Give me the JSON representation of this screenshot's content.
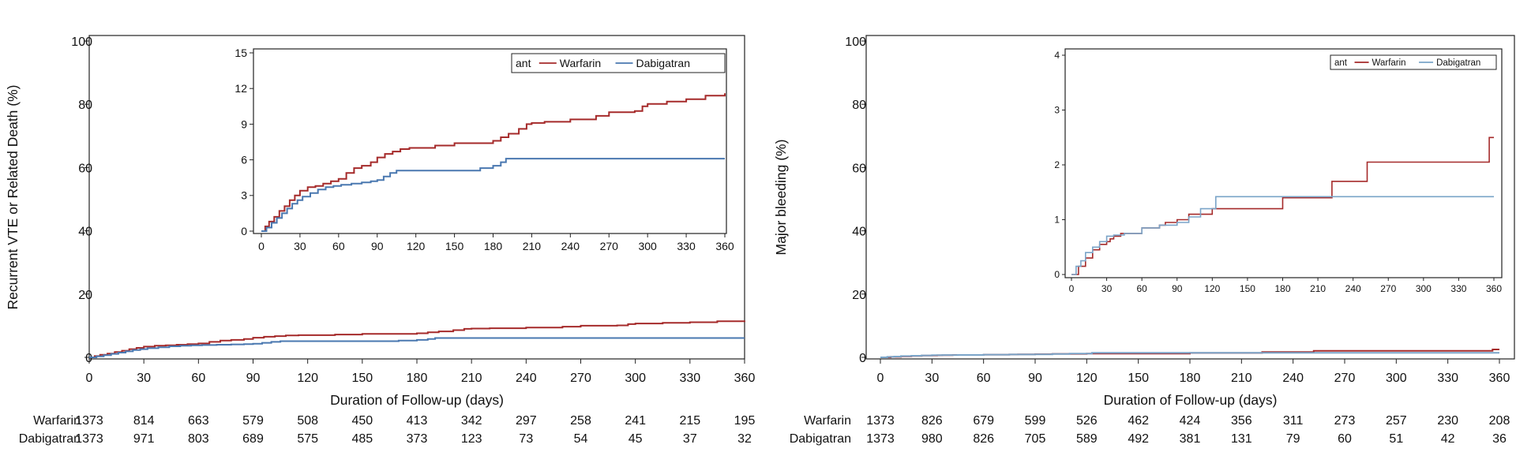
{
  "chart_data": [
    {
      "type": "line",
      "panel": "left",
      "ylabel": "Recurrent VTE or Related Death (%)",
      "xlabel": "Duration of Follow-up (days)",
      "xlim": [
        0,
        360
      ],
      "ylim": [
        0,
        100
      ],
      "xticks": [
        "0",
        "30",
        "60",
        "90",
        "120",
        "150",
        "180",
        "210",
        "240",
        "270",
        "300",
        "330",
        "360"
      ],
      "yticks": [
        "0",
        "20",
        "40",
        "60",
        "80",
        "100"
      ],
      "series": [
        {
          "name": "Warfarin",
          "color": "#a52a2a",
          "x": [
            0,
            3,
            6,
            10,
            14,
            18,
            22,
            26,
            30,
            36,
            42,
            48,
            54,
            60,
            66,
            72,
            78,
            85,
            90,
            96,
            102,
            108,
            115,
            120,
            135,
            150,
            165,
            180,
            186,
            192,
            200,
            206,
            210,
            220,
            240,
            260,
            270,
            290,
            296,
            300,
            315,
            330,
            345,
            360
          ],
          "y": [
            0,
            0.4,
            0.8,
            1.2,
            1.7,
            2.1,
            2.6,
            3.0,
            3.4,
            3.7,
            3.8,
            4.0,
            4.2,
            4.4,
            4.9,
            5.3,
            5.5,
            5.8,
            6.2,
            6.5,
            6.7,
            6.9,
            7.0,
            7.0,
            7.2,
            7.4,
            7.4,
            7.6,
            7.9,
            8.2,
            8.6,
            9.0,
            9.1,
            9.2,
            9.4,
            9.7,
            10.0,
            10.1,
            10.5,
            10.7,
            10.9,
            11.1,
            11.4,
            11.6
          ]
        },
        {
          "name": "Dabigatran",
          "color": "#4a78b0",
          "x": [
            0,
            4,
            8,
            12,
            16,
            20,
            24,
            28,
            32,
            38,
            44,
            50,
            56,
            62,
            70,
            78,
            85,
            90,
            95,
            100,
            105,
            120,
            150,
            170,
            180,
            186,
            190,
            200,
            240,
            300,
            360
          ],
          "y": [
            0,
            0.3,
            0.7,
            1.1,
            1.5,
            1.9,
            2.3,
            2.6,
            2.9,
            3.2,
            3.5,
            3.7,
            3.8,
            3.9,
            4.0,
            4.1,
            4.2,
            4.3,
            4.6,
            4.9,
            5.1,
            5.1,
            5.1,
            5.3,
            5.5,
            5.8,
            6.1,
            6.1,
            6.1,
            6.1,
            6.1
          ]
        }
      ],
      "inset": {
        "xlim": [
          0,
          360
        ],
        "ylim": [
          0,
          15
        ],
        "xticks": [
          "0",
          "30",
          "60",
          "90",
          "120",
          "150",
          "180",
          "210",
          "240",
          "270",
          "300",
          "330",
          "360"
        ],
        "yticks": [
          "0",
          "3",
          "6",
          "9",
          "12",
          "15"
        ],
        "legend": {
          "title": "ant",
          "entries": [
            "Warfarin",
            "Dabigatran"
          ],
          "position": "top-right"
        }
      },
      "risk_table": {
        "rows": [
          {
            "label": "Warfarin",
            "values": [
              "1373",
              "814",
              "663",
              "579",
              "508",
              "450",
              "413",
              "342",
              "297",
              "258",
              "241",
              "215",
              "195"
            ]
          },
          {
            "label": "Dabigatran",
            "values": [
              "1373",
              "971",
              "803",
              "689",
              "575",
              "485",
              "373",
              "123",
              "73",
              "54",
              "45",
              "37",
              "32"
            ]
          }
        ]
      }
    },
    {
      "type": "line",
      "panel": "right",
      "ylabel": "Major bleeding (%)",
      "xlabel": "Duration of Follow-up (days)",
      "xlim": [
        0,
        360
      ],
      "ylim": [
        0,
        100
      ],
      "xticks": [
        "0",
        "30",
        "60",
        "90",
        "120",
        "150",
        "180",
        "210",
        "240",
        "270",
        "300",
        "330",
        "360"
      ],
      "yticks": [
        "0",
        "20",
        "40",
        "60",
        "80",
        "100"
      ],
      "series": [
        {
          "name": "Warfarin",
          "color": "#a52a2a",
          "x": [
            0,
            6,
            12,
            18,
            24,
            30,
            33,
            36,
            42,
            60,
            75,
            80,
            90,
            100,
            120,
            180,
            222,
            252,
            356,
            360
          ],
          "y": [
            0,
            0.15,
            0.3,
            0.45,
            0.55,
            0.6,
            0.65,
            0.7,
            0.75,
            0.85,
            0.9,
            0.95,
            1.0,
            1.1,
            1.2,
            1.4,
            1.7,
            2.05,
            2.5,
            2.5
          ]
        },
        {
          "name": "Dabigatran",
          "color": "#7aa4c8",
          "x": [
            0,
            4,
            8,
            12,
            18,
            24,
            30,
            36,
            45,
            60,
            75,
            90,
            100,
            110,
            123,
            150,
            180,
            240,
            300,
            360
          ],
          "y": [
            0,
            0.15,
            0.25,
            0.4,
            0.5,
            0.6,
            0.7,
            0.72,
            0.75,
            0.85,
            0.9,
            0.95,
            1.05,
            1.2,
            1.42,
            1.42,
            1.42,
            1.42,
            1.42,
            1.42
          ]
        }
      ],
      "inset": {
        "xlim": [
          0,
          360
        ],
        "ylim": [
          0,
          4
        ],
        "xticks": [
          "0",
          "30",
          "60",
          "90",
          "120",
          "150",
          "180",
          "210",
          "240",
          "270",
          "300",
          "330",
          "360"
        ],
        "yticks": [
          "0",
          "1",
          "2",
          "3",
          "4"
        ],
        "legend": {
          "title": "ant",
          "entries": [
            "Warfarin",
            "Dabigatran"
          ],
          "position": "top-right"
        }
      },
      "risk_table": {
        "rows": [
          {
            "label": "Warfarin",
            "values": [
              "1373",
              "826",
              "679",
              "599",
              "526",
              "462",
              "424",
              "356",
              "311",
              "273",
              "257",
              "230",
              "208"
            ]
          },
          {
            "label": "Dabigatran",
            "values": [
              "1373",
              "980",
              "826",
              "705",
              "589",
              "492",
              "381",
              "131",
              "79",
              "60",
              "51",
              "42",
              "36"
            ]
          }
        ]
      }
    }
  ]
}
